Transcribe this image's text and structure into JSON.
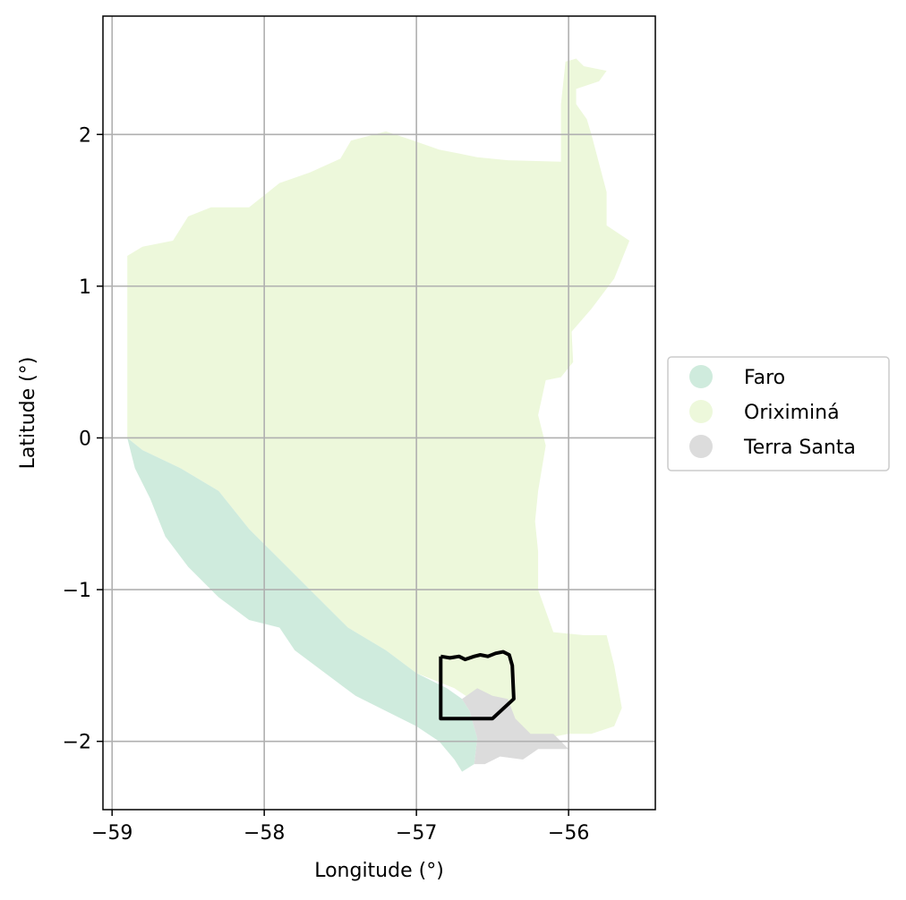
{
  "map": {
    "xlabel": "Longitude (°)",
    "ylabel": "Latitude (°)",
    "x_ticks": [
      -59,
      -58,
      -57,
      -56
    ],
    "x_tick_labels": [
      "−59",
      "−58",
      "−57",
      "−56"
    ],
    "y_ticks": [
      2,
      1,
      0,
      -1,
      -2
    ],
    "y_tick_labels": [
      "2",
      "1",
      "0",
      "−1",
      "−2"
    ],
    "grid": true,
    "legend_placement": "right, outside plot",
    "legend": [
      {
        "label": "Faro",
        "color": "#cfebdd"
      },
      {
        "label": "Oriximiná",
        "color": "#edf8db"
      },
      {
        "label": "Terra Santa",
        "color": "#dcdcdc"
      }
    ],
    "regions": {
      "oriximina": {
        "name": "Oriximiná",
        "color": "#edf8db",
        "outline_lonlat": [
          [
            -58.9,
            1.2
          ],
          [
            -58.8,
            1.26
          ],
          [
            -58.6,
            1.3
          ],
          [
            -58.5,
            1.46
          ],
          [
            -58.35,
            1.52
          ],
          [
            -58.1,
            1.52
          ],
          [
            -57.9,
            1.68
          ],
          [
            -57.7,
            1.75
          ],
          [
            -57.5,
            1.84
          ],
          [
            -57.43,
            1.96
          ],
          [
            -57.2,
            2.02
          ],
          [
            -57.05,
            1.97
          ],
          [
            -56.85,
            1.9
          ],
          [
            -56.6,
            1.85
          ],
          [
            -56.4,
            1.83
          ],
          [
            -56.05,
            1.82
          ],
          [
            -55.9,
            1.76
          ],
          [
            -55.75,
            1.62
          ],
          [
            -55.75,
            1.4
          ],
          [
            -55.6,
            1.3
          ],
          [
            -55.7,
            1.05
          ],
          [
            -55.85,
            0.85
          ],
          [
            -55.98,
            0.7
          ],
          [
            -55.97,
            0.5
          ],
          [
            -56.05,
            0.4
          ],
          [
            -56.15,
            0.38
          ],
          [
            -56.2,
            0.15
          ],
          [
            -56.15,
            -0.05
          ],
          [
            -56.2,
            -0.35
          ],
          [
            -56.22,
            -0.55
          ],
          [
            -56.2,
            -0.75
          ],
          [
            -56.2,
            -1.0
          ],
          [
            -56.1,
            -1.28
          ],
          [
            -55.9,
            -1.3
          ],
          [
            -55.75,
            -1.3
          ],
          [
            -55.7,
            -1.5
          ],
          [
            -55.65,
            -1.78
          ],
          [
            -55.7,
            -1.9
          ],
          [
            -55.85,
            -1.95
          ],
          [
            -56.0,
            -1.95
          ],
          [
            -56.15,
            -1.98
          ],
          [
            -56.3,
            -1.95
          ],
          [
            -56.5,
            -1.85
          ],
          [
            -56.6,
            -1.75
          ],
          [
            -56.75,
            -1.65
          ],
          [
            -57.0,
            -1.55
          ],
          [
            -57.2,
            -1.4
          ],
          [
            -57.45,
            -1.25
          ],
          [
            -57.65,
            -1.05
          ],
          [
            -57.85,
            -0.85
          ],
          [
            -58.1,
            -0.6
          ],
          [
            -58.3,
            -0.35
          ],
          [
            -58.55,
            -0.2
          ],
          [
            -58.8,
            -0.08
          ],
          [
            -58.9,
            0.0
          ]
        ],
        "extension_lonlat": [
          [
            -56.05,
            1.82
          ],
          [
            -56.05,
            2.2
          ],
          [
            -56.02,
            2.48
          ],
          [
            -55.95,
            2.5
          ],
          [
            -55.9,
            2.45
          ],
          [
            -55.75,
            2.42
          ],
          [
            -55.8,
            2.35
          ],
          [
            -55.95,
            2.3
          ],
          [
            -55.95,
            2.2
          ],
          [
            -55.88,
            2.1
          ],
          [
            -55.85,
            2.0
          ],
          [
            -55.75,
            1.62
          ]
        ]
      },
      "faro": {
        "name": "Faro",
        "color": "#cfebdd",
        "outline_lonlat": [
          [
            -58.9,
            0.0
          ],
          [
            -58.8,
            -0.08
          ],
          [
            -58.55,
            -0.2
          ],
          [
            -58.3,
            -0.35
          ],
          [
            -58.1,
            -0.6
          ],
          [
            -57.85,
            -0.85
          ],
          [
            -57.65,
            -1.05
          ],
          [
            -57.45,
            -1.25
          ],
          [
            -57.2,
            -1.4
          ],
          [
            -57.0,
            -1.55
          ],
          [
            -56.8,
            -1.65
          ],
          [
            -56.7,
            -1.72
          ],
          [
            -56.65,
            -1.8
          ],
          [
            -56.6,
            -1.98
          ],
          [
            -56.62,
            -2.15
          ],
          [
            -56.7,
            -2.2
          ],
          [
            -56.75,
            -2.12
          ],
          [
            -56.85,
            -2.0
          ],
          [
            -57.0,
            -1.9
          ],
          [
            -57.2,
            -1.8
          ],
          [
            -57.4,
            -1.7
          ],
          [
            -57.6,
            -1.55
          ],
          [
            -57.8,
            -1.4
          ],
          [
            -57.9,
            -1.25
          ],
          [
            -58.1,
            -1.2
          ],
          [
            -58.3,
            -1.05
          ],
          [
            -58.5,
            -0.85
          ],
          [
            -58.65,
            -0.65
          ],
          [
            -58.75,
            -0.4
          ],
          [
            -58.85,
            -0.2
          ]
        ]
      },
      "terra_santa": {
        "name": "Terra Santa",
        "color": "#dcdcdc",
        "outline_lonlat": [
          [
            -56.7,
            -1.72
          ],
          [
            -56.6,
            -1.65
          ],
          [
            -56.5,
            -1.7
          ],
          [
            -56.4,
            -1.72
          ],
          [
            -56.35,
            -1.85
          ],
          [
            -56.25,
            -1.95
          ],
          [
            -56.1,
            -1.95
          ],
          [
            -56.0,
            -2.05
          ],
          [
            -56.2,
            -2.05
          ],
          [
            -56.3,
            -2.12
          ],
          [
            -56.45,
            -2.1
          ],
          [
            -56.55,
            -2.15
          ],
          [
            -56.62,
            -2.15
          ],
          [
            -56.6,
            -1.98
          ],
          [
            -56.65,
            -1.8
          ]
        ]
      }
    },
    "study_area_outline_lonlat": [
      [
        -56.84,
        -1.44
      ],
      [
        -56.78,
        -1.45
      ],
      [
        -56.72,
        -1.44
      ],
      [
        -56.68,
        -1.46
      ],
      [
        -56.62,
        -1.44
      ],
      [
        -56.58,
        -1.43
      ],
      [
        -56.53,
        -1.44
      ],
      [
        -56.48,
        -1.42
      ],
      [
        -56.43,
        -1.41
      ],
      [
        -56.39,
        -1.43
      ],
      [
        -56.37,
        -1.5
      ],
      [
        -56.36,
        -1.72
      ],
      [
        -56.5,
        -1.85
      ],
      [
        -56.84,
        -1.85
      ],
      [
        -56.84,
        -1.44
      ]
    ]
  }
}
